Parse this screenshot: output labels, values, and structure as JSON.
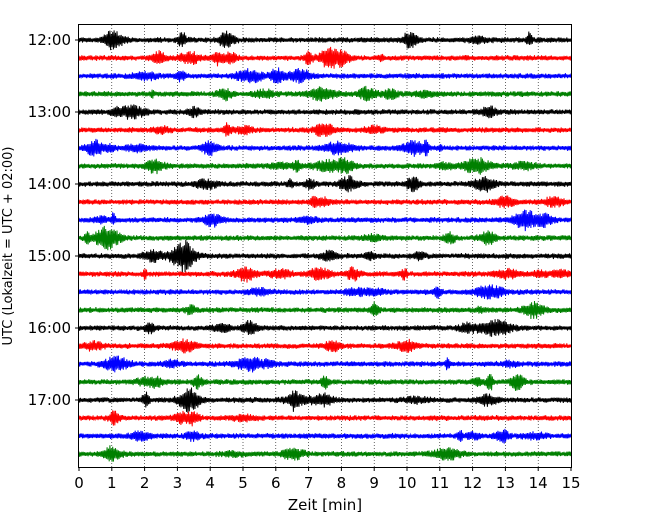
{
  "chart_data": {
    "type": "line",
    "title": "",
    "xlabel": "Zeit  [min]",
    "ylabel": "UTC (Lokalzeit = UTC + 02:00)",
    "xlim": [
      0,
      15
    ],
    "x_ticks": [
      "0",
      "1",
      "2",
      "3",
      "4",
      "5",
      "6",
      "7",
      "8",
      "9",
      "10",
      "11",
      "12",
      "13",
      "14",
      "15"
    ],
    "y_ticks": [
      "12:00",
      "13:00",
      "14:00",
      "15:00",
      "16:00",
      "17:00"
    ],
    "grid": "vertical dotted",
    "color_cycle": [
      "#000000",
      "#ff0000",
      "#0000ff",
      "#008000"
    ],
    "traces": [
      {
        "start": "12:00",
        "color": "#000000"
      },
      {
        "start": "12:15",
        "color": "#ff0000"
      },
      {
        "start": "12:30",
        "color": "#0000ff"
      },
      {
        "start": "12:45",
        "color": "#008000"
      },
      {
        "start": "13:00",
        "color": "#000000"
      },
      {
        "start": "13:15",
        "color": "#ff0000"
      },
      {
        "start": "13:30",
        "color": "#0000ff"
      },
      {
        "start": "13:45",
        "color": "#008000"
      },
      {
        "start": "14:00",
        "color": "#000000"
      },
      {
        "start": "14:15",
        "color": "#ff0000"
      },
      {
        "start": "14:30",
        "color": "#0000ff"
      },
      {
        "start": "14:45",
        "color": "#008000"
      },
      {
        "start": "15:00",
        "color": "#000000"
      },
      {
        "start": "15:15",
        "color": "#ff0000"
      },
      {
        "start": "15:30",
        "color": "#0000ff"
      },
      {
        "start": "15:45",
        "color": "#008000"
      },
      {
        "start": "16:00",
        "color": "#000000"
      },
      {
        "start": "16:15",
        "color": "#ff0000"
      },
      {
        "start": "16:30",
        "color": "#0000ff"
      },
      {
        "start": "16:45",
        "color": "#008000"
      },
      {
        "start": "17:00",
        "color": "#000000"
      },
      {
        "start": "17:15",
        "color": "#ff0000"
      },
      {
        "start": "17:30",
        "color": "#0000ff"
      },
      {
        "start": "17:45",
        "color": "#008000"
      }
    ]
  }
}
